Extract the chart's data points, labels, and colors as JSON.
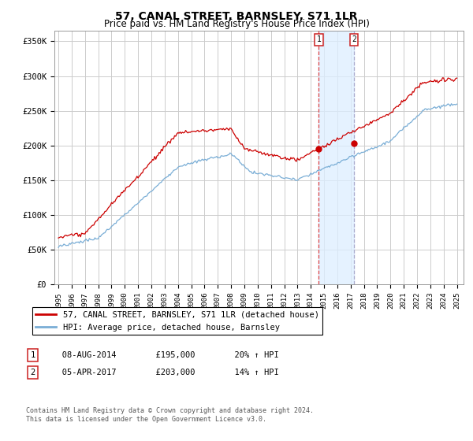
{
  "title": "57, CANAL STREET, BARNSLEY, S71 1LR",
  "subtitle": "Price paid vs. HM Land Registry's House Price Index (HPI)",
  "title_fontsize": 10,
  "subtitle_fontsize": 8.5,
  "ylabel_ticks": [
    "£0",
    "£50K",
    "£100K",
    "£150K",
    "£200K",
    "£250K",
    "£300K",
    "£350K"
  ],
  "ytick_vals": [
    0,
    50000,
    100000,
    150000,
    200000,
    250000,
    300000,
    350000
  ],
  "ylim": [
    0,
    365000
  ],
  "sale1_x": 2014.6,
  "sale1_price": 195000,
  "sale1_date": "08-AUG-2014",
  "sale1_pct": "20%",
  "sale2_x": 2017.25,
  "sale2_price": 203000,
  "sale2_date": "05-APR-2017",
  "sale2_pct": "14%",
  "line_red": "#cc0000",
  "line_blue": "#7aaed6",
  "bg_color": "#ffffff",
  "grid_color": "#cccccc",
  "shade_color": "#ddeeff",
  "vline1_color": "#dd4444",
  "vline2_color": "#aaaacc",
  "legend_label_red": "57, CANAL STREET, BARNSLEY, S71 1LR (detached house)",
  "legend_label_blue": "HPI: Average price, detached house, Barnsley",
  "footer1": "Contains HM Land Registry data © Crown copyright and database right 2024.",
  "footer2": "This data is licensed under the Open Government Licence v3.0."
}
